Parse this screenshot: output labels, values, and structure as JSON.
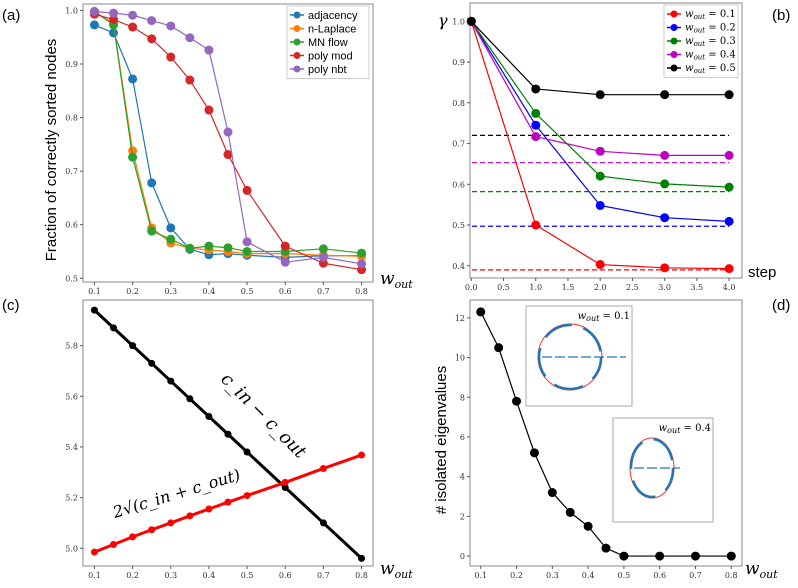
{
  "panel_labels": [
    "(a)",
    "(b)",
    "(c)",
    "(d)"
  ],
  "xlabel_base": "w",
  "xlabel_sub": "out",
  "chart_data": [
    {
      "type": "line",
      "panel": "(a)",
      "ylabel": "Fraction of correctly sorted nodes",
      "xlabel": "w_out",
      "xlim": [
        0.07,
        0.83
      ],
      "ylim": [
        0.493,
        1.012
      ],
      "xticks": [
        0.1,
        0.2,
        0.3,
        0.4,
        0.5,
        0.6,
        0.7,
        0.8
      ],
      "yticks": [
        0.5,
        0.6,
        0.7,
        0.8,
        0.9,
        1.0
      ],
      "legend": "top-right",
      "x": [
        0.1,
        0.15,
        0.2,
        0.25,
        0.3,
        0.35,
        0.4,
        0.45,
        0.5,
        0.6,
        0.7,
        0.8
      ],
      "series": [
        {
          "name": "adjacency",
          "color": "#1f77b4",
          "values": [
            0.973,
            0.958,
            0.872,
            0.678,
            0.594,
            0.554,
            0.544,
            0.546,
            0.543,
            0.539,
            0.542,
            0.542
          ]
        },
        {
          "name": "n-Laplace",
          "color": "#ff7f0e",
          "values": [
            0.998,
            0.975,
            0.738,
            0.594,
            0.566,
            0.556,
            0.553,
            0.55,
            0.546,
            0.546,
            0.543,
            0.541
          ]
        },
        {
          "name": "MN flow",
          "color": "#2ca02c",
          "values": [
            0.998,
            0.973,
            0.726,
            0.588,
            0.573,
            0.556,
            0.56,
            0.557,
            0.55,
            0.55,
            0.555,
            0.547
          ]
        },
        {
          "name": "poly mod",
          "color": "#d62728",
          "values": [
            0.993,
            0.983,
            0.969,
            0.947,
            0.913,
            0.87,
            0.814,
            0.731,
            0.664,
            0.56,
            0.528,
            0.516
          ]
        },
        {
          "name": "poly nbt",
          "color": "#9467bd",
          "values": [
            0.998,
            0.995,
            0.991,
            0.981,
            0.971,
            0.949,
            0.926,
            0.773,
            0.568,
            0.53,
            0.539,
            0.527
          ]
        }
      ]
    },
    {
      "type": "line",
      "panel": "(b)",
      "ylabel": "γ",
      "xlabel": "step",
      "xlim": [
        -0.02,
        4.2
      ],
      "ylim": [
        0.37,
        1.045
      ],
      "xticks": [
        0.0,
        0.5,
        1.0,
        1.5,
        2.0,
        2.5,
        3.0,
        3.5,
        4.0
      ],
      "yticks": [
        0.4,
        0.5,
        0.6,
        0.7,
        0.8,
        0.9,
        1.0
      ],
      "legend": "top-right",
      "x": [
        0,
        1,
        2,
        3,
        4
      ],
      "series": [
        {
          "name": "= 0.1",
          "color": "#ff0000",
          "values": [
            1.0,
            0.5,
            0.403,
            0.395,
            0.393
          ],
          "dashed": 0.39
        },
        {
          "name": "= 0.2",
          "color": "#0000ff",
          "values": [
            1.0,
            0.745,
            0.548,
            0.518,
            0.509
          ],
          "dashed": 0.497
        },
        {
          "name": "= 0.3",
          "color": "#008000",
          "values": [
            1.0,
            0.774,
            0.62,
            0.601,
            0.593
          ],
          "dashed": 0.582
        },
        {
          "name": "= 0.4",
          "color": "#c000c0",
          "values": [
            1.0,
            0.717,
            0.681,
            0.671,
            0.671
          ],
          "dashed": 0.653
        },
        {
          "name": "= 0.5",
          "color": "#000000",
          "values": [
            1.0,
            0.834,
            0.82,
            0.82,
            0.82
          ],
          "dashed": 0.72
        }
      ]
    },
    {
      "type": "line",
      "panel": "(c)",
      "xlabel": "w_out",
      "xlim": [
        0.07,
        0.83
      ],
      "ylim": [
        4.93,
        5.98
      ],
      "xticks": [
        0.1,
        0.2,
        0.3,
        0.4,
        0.5,
        0.6,
        0.7,
        0.8
      ],
      "yticks": [
        5.0,
        5.2,
        5.4,
        5.6,
        5.8
      ],
      "x": [
        0.1,
        0.15,
        0.2,
        0.25,
        0.3,
        0.35,
        0.4,
        0.45,
        0.5,
        0.6,
        0.7,
        0.8
      ],
      "annotations": {
        "diff": "c_in − c_out",
        "sum": "2√(c_in + c_out)"
      },
      "series": [
        {
          "name": "c_in − c_out",
          "color": "#000000",
          "values": [
            5.94,
            5.87,
            5.8,
            5.73,
            5.66,
            5.59,
            5.52,
            5.45,
            5.38,
            5.24,
            5.1,
            4.96
          ]
        },
        {
          "name": "2√(c_in + c_out)",
          "color": "#ff0000",
          "values": [
            4.985,
            5.015,
            5.045,
            5.073,
            5.1,
            5.128,
            5.155,
            5.182,
            5.208,
            5.26,
            5.315,
            5.368
          ]
        }
      ]
    },
    {
      "type": "line",
      "panel": "(d)",
      "ylabel": "# isolated eigenvalues",
      "xlabel": "w_out",
      "xlim": [
        0.07,
        0.83
      ],
      "ylim": [
        -0.5,
        12.9
      ],
      "xticks": [
        0.1,
        0.2,
        0.3,
        0.4,
        0.5,
        0.6,
        0.7,
        0.8
      ],
      "yticks": [
        0,
        2,
        4,
        6,
        8,
        10,
        12
      ],
      "x": [
        0.1,
        0.15,
        0.2,
        0.25,
        0.3,
        0.35,
        0.4,
        0.45,
        0.5,
        0.6,
        0.7,
        0.8
      ],
      "insets": [
        "= 0.1",
        "= 0.4"
      ],
      "series": [
        {
          "name": "isolated",
          "color": "#000000",
          "values": [
            12.3,
            10.5,
            7.8,
            5.2,
            3.2,
            2.2,
            1.5,
            0.4,
            0,
            0,
            0,
            0
          ]
        }
      ]
    }
  ]
}
